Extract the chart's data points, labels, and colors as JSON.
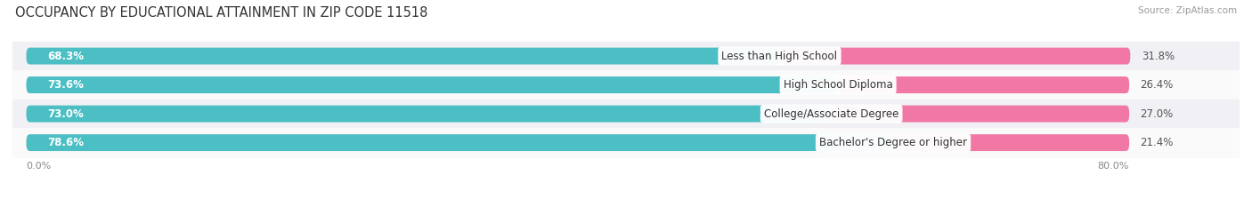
{
  "title": "OCCUPANCY BY EDUCATIONAL ATTAINMENT IN ZIP CODE 11518",
  "source": "Source: ZipAtlas.com",
  "categories": [
    "Less than High School",
    "High School Diploma",
    "College/Associate Degree",
    "Bachelor's Degree or higher"
  ],
  "owner_pct": [
    68.3,
    73.6,
    73.0,
    78.6
  ],
  "renter_pct": [
    31.8,
    26.4,
    27.0,
    21.4
  ],
  "owner_color": "#4BBFC4",
  "renter_color": "#F178A4",
  "bg_bar_color": "#E8E8EC",
  "row_bg_colors": [
    "#F0F0F5",
    "#FAFAFA",
    "#F0F0F5",
    "#FAFAFA"
  ],
  "xlim_left": 0.0,
  "xlim_right": 80.0,
  "axis_label_left": "0.0%",
  "axis_label_right": "80.0%",
  "title_fontsize": 10.5,
  "source_fontsize": 7.5,
  "label_fontsize": 8,
  "bar_label_fontsize": 8.5,
  "category_fontsize": 8.5,
  "legend_fontsize": 8.5
}
